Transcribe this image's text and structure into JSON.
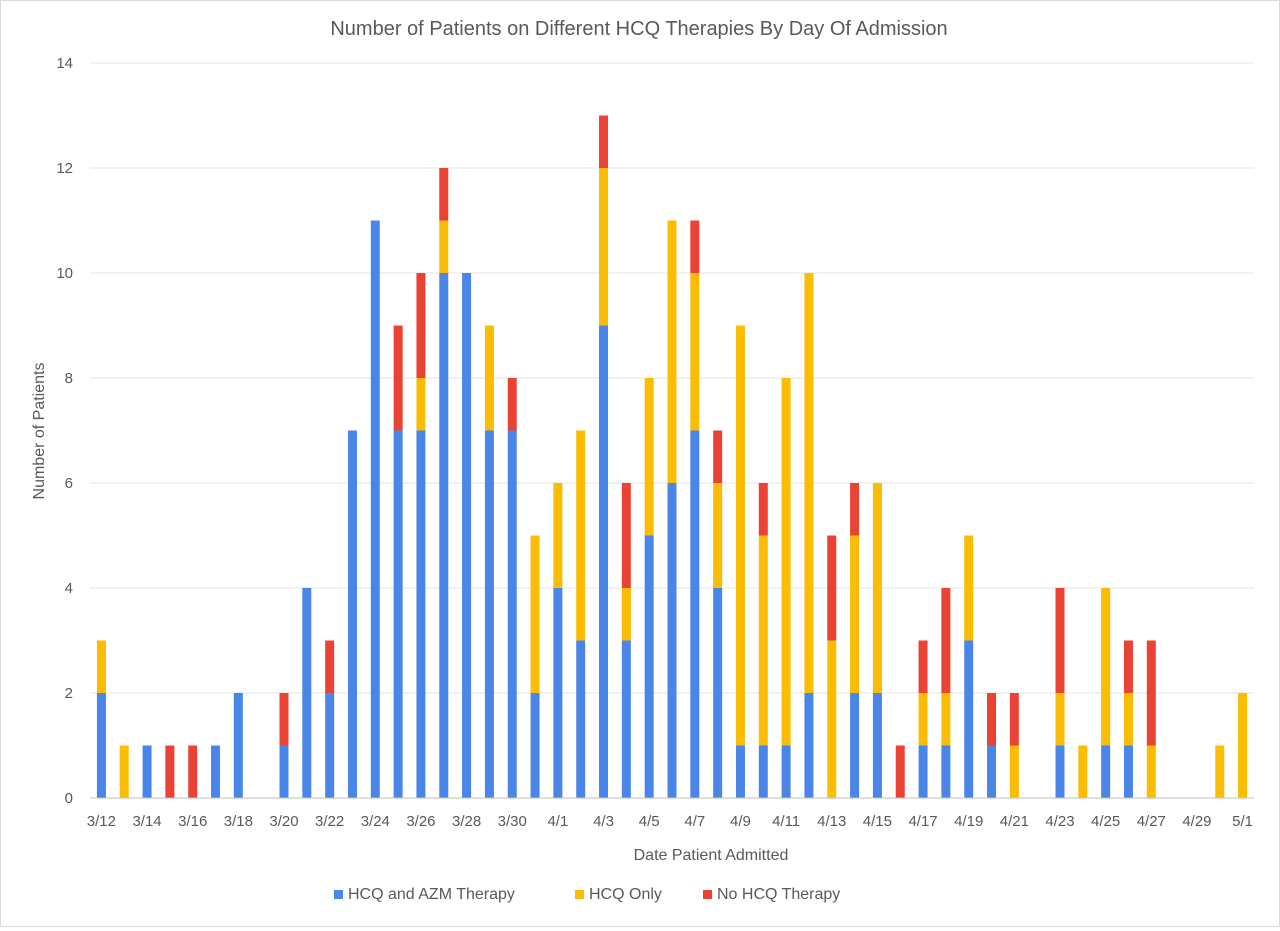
{
  "chart_data": {
    "type": "bar",
    "stacked": true,
    "title": "Number of Patients on Different HCQ Therapies By Day Of Admission",
    "xlabel": "Date Patient Admitted",
    "ylabel": "Number of Patients",
    "ylim": [
      0,
      14
    ],
    "yticks": [
      0,
      2,
      4,
      6,
      8,
      10,
      12,
      14
    ],
    "grid": true,
    "legend_position": "bottom",
    "categories": [
      "3/12",
      "3/13",
      "3/14",
      "3/15",
      "3/16",
      "3/17",
      "3/18",
      "3/19",
      "3/20",
      "3/21",
      "3/22",
      "3/23",
      "3/24",
      "3/25",
      "3/26",
      "3/27",
      "3/28",
      "3/29",
      "3/30",
      "3/31",
      "4/1",
      "4/2",
      "4/3",
      "4/4",
      "4/5",
      "4/6",
      "4/7",
      "4/8",
      "4/9",
      "4/10",
      "4/11",
      "4/12",
      "4/13",
      "4/14",
      "4/15",
      "4/16",
      "4/17",
      "4/18",
      "4/19",
      "4/20",
      "4/21",
      "4/22",
      "4/23",
      "4/24",
      "4/25",
      "4/26",
      "4/27",
      "4/28",
      "4/29",
      "4/30",
      "5/1"
    ],
    "x_tick_labels": [
      "3/12",
      "3/14",
      "3/16",
      "3/18",
      "3/20",
      "3/22",
      "3/24",
      "3/26",
      "3/28",
      "3/30",
      "4/1",
      "4/3",
      "4/5",
      "4/7",
      "4/9",
      "4/11",
      "4/13",
      "4/15",
      "4/17",
      "4/19",
      "4/21",
      "4/23",
      "4/25",
      "4/27",
      "4/29",
      "5/1"
    ],
    "series": [
      {
        "name": "HCQ and AZM Therapy",
        "color": "#4a86e8",
        "values": [
          2,
          0,
          1,
          0,
          0,
          1,
          2,
          0,
          1,
          4,
          2,
          7,
          11,
          7,
          7,
          10,
          10,
          7,
          7,
          2,
          4,
          3,
          9,
          3,
          5,
          6,
          7,
          4,
          1,
          1,
          1,
          2,
          0,
          2,
          2,
          0,
          1,
          1,
          3,
          1,
          0,
          0,
          1,
          0,
          1,
          1,
          0,
          0,
          0,
          0,
          0
        ]
      },
      {
        "name": "HCQ Only",
        "color": "#fbbc04",
        "values": [
          1,
          1,
          0,
          0,
          0,
          0,
          0,
          0,
          0,
          0,
          0,
          0,
          0,
          0,
          1,
          1,
          0,
          2,
          0,
          3,
          2,
          4,
          3,
          1,
          3,
          5,
          3,
          2,
          8,
          4,
          7,
          8,
          3,
          3,
          4,
          0,
          1,
          1,
          2,
          0,
          1,
          0,
          1,
          1,
          3,
          1,
          1,
          0,
          0,
          1,
          2
        ]
      },
      {
        "name": "No HCQ Therapy",
        "color": "#ea4335",
        "values": [
          0,
          0,
          0,
          1,
          1,
          0,
          0,
          0,
          1,
          0,
          1,
          0,
          0,
          2,
          2,
          1,
          0,
          0,
          1,
          0,
          0,
          0,
          1,
          2,
          0,
          0,
          1,
          1,
          0,
          1,
          0,
          0,
          2,
          1,
          0,
          1,
          1,
          2,
          0,
          1,
          1,
          0,
          2,
          0,
          0,
          1,
          2,
          0,
          0,
          0,
          0
        ]
      }
    ]
  }
}
